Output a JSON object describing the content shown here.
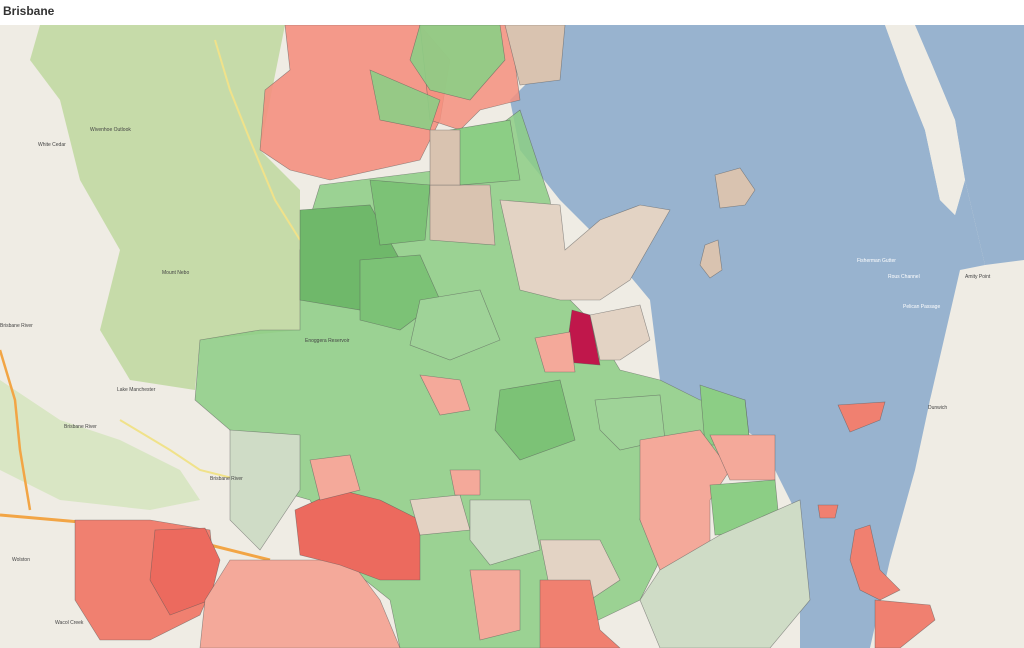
{
  "header": {
    "title": "Brisbane"
  },
  "map": {
    "labels": [
      "White Cedar",
      "Wivenhoe Outlook",
      "Mount Nebo",
      "Lake Manchester",
      "Brisbane River",
      "Brisbane River",
      "Enoggera Reservoir",
      "Brisbane River",
      "Amity Point",
      "Dunwich",
      "Rous Channel",
      "Fisherman Gutter",
      "Pelican Passage",
      "Wolston",
      "Wacol Creek"
    ]
  }
}
